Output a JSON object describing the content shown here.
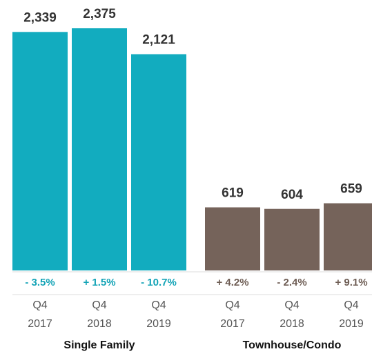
{
  "chart_data": {
    "type": "bar",
    "groups": [
      {
        "name": "Single Family",
        "color": "#12acbf",
        "label_color": "#12a3b6",
        "categories": [
          [
            "Q4",
            "2017"
          ],
          [
            "Q4",
            "2018"
          ],
          [
            "Q4",
            "2019"
          ]
        ],
        "values": [
          2339,
          2375,
          2121
        ],
        "value_labels": [
          "2,339",
          "2,375",
          "2,121"
        ],
        "change_labels": [
          "- 3.5%",
          "+ 1.5%",
          "- 10.7%"
        ]
      },
      {
        "name": "Townhouse/Condo",
        "color": "#75635a",
        "label_color": "#6e5d54",
        "categories": [
          [
            "Q4",
            "2017"
          ],
          [
            "Q4",
            "2018"
          ],
          [
            "Q4",
            "2019"
          ]
        ],
        "values": [
          619,
          604,
          659
        ],
        "value_labels": [
          "619",
          "604",
          "659"
        ],
        "change_labels": [
          "+ 4.2%",
          "- 2.4%",
          "+ 9.1%"
        ]
      }
    ]
  }
}
